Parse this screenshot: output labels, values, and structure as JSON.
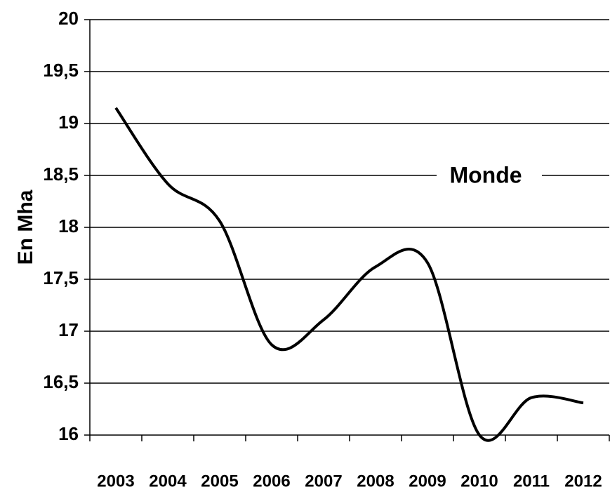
{
  "chart_data": {
    "type": "line",
    "y_label": "En Mha",
    "annotation": "Monde",
    "categories": [
      "2003",
      "2004",
      "2005",
      "2006",
      "2007",
      "2008",
      "2009",
      "2010",
      "2011",
      "2012"
    ],
    "series": [
      {
        "name": "Monde",
        "color": "#000000",
        "values": [
          19.15,
          18.42,
          18.06,
          16.87,
          17.11,
          17.62,
          17.66,
          16.0,
          16.36,
          16.31
        ]
      }
    ],
    "ylim": [
      16,
      20
    ],
    "yticks": [
      {
        "value": 16,
        "label": "16"
      },
      {
        "value": 16.5,
        "label": "16,5"
      },
      {
        "value": 17,
        "label": "17"
      },
      {
        "value": 17.5,
        "label": "17,5"
      },
      {
        "value": 18,
        "label": "18"
      },
      {
        "value": 18.5,
        "label": "18,5"
      },
      {
        "value": 19,
        "label": "19"
      },
      {
        "value": 19.5,
        "label": "19,5"
      },
      {
        "value": 20,
        "label": "20"
      }
    ],
    "grid": true
  }
}
